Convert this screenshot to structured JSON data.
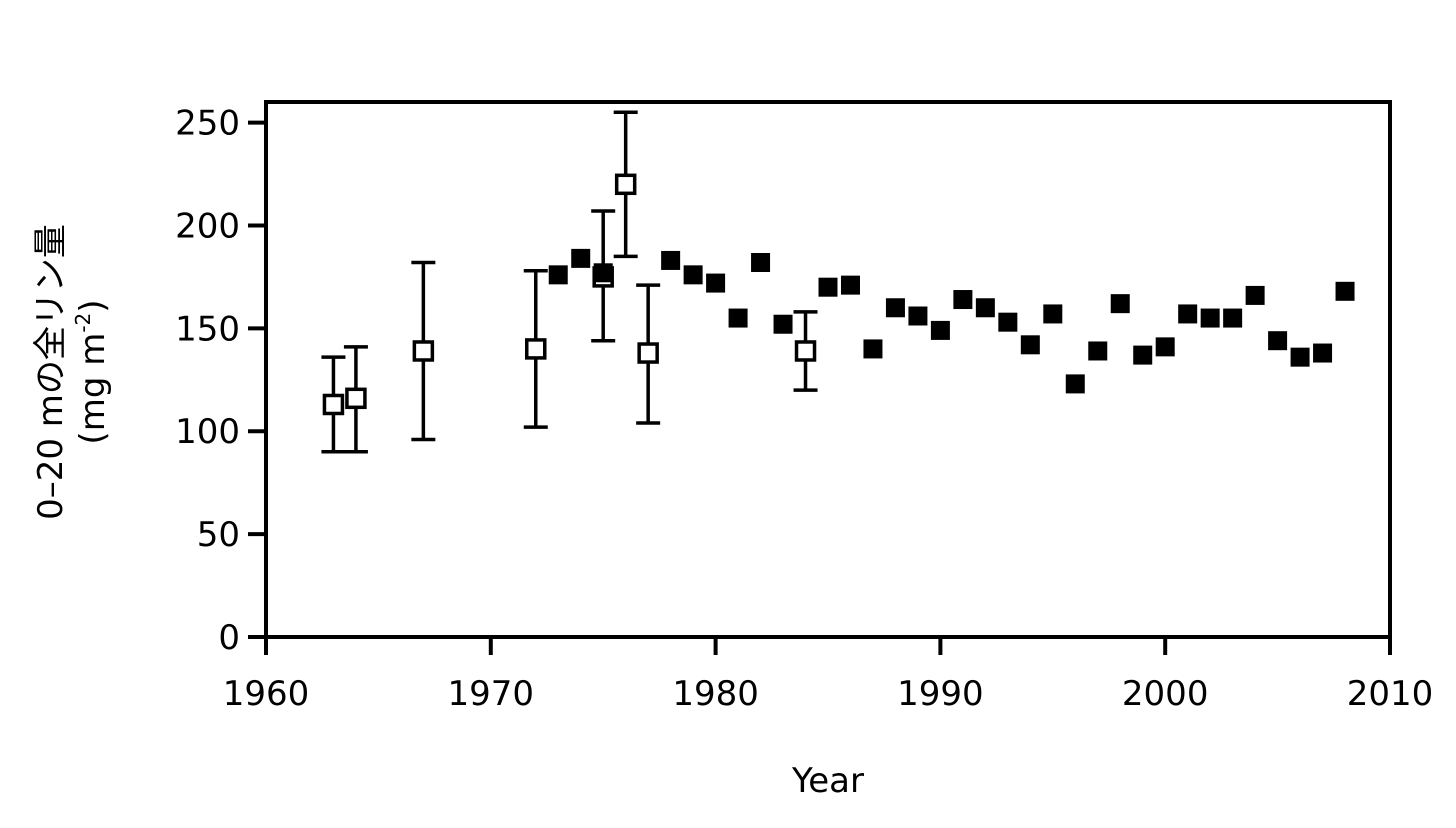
{
  "chart_data": {
    "type": "scatter",
    "title": "",
    "xlabel": "Year",
    "ylabel": {
      "line1": "0–20 mの全リン量",
      "line2_prefix": "(mg m",
      "line2_sup": "-2",
      "line2_suffix": ")"
    },
    "xlim": [
      1960,
      2010
    ],
    "ylim": [
      0,
      260
    ],
    "xticks": [
      1960,
      1970,
      1980,
      1990,
      2000,
      2010
    ],
    "yticks": [
      0,
      50,
      100,
      150,
      200,
      250
    ],
    "grid": false,
    "legend": "none",
    "series": [
      {
        "marker": "open-square",
        "points": [
          {
            "x": 1963,
            "y": 113,
            "err_low": 90,
            "err_high": 136
          },
          {
            "x": 1964,
            "y": 116,
            "err_low": 90,
            "err_high": 141
          },
          {
            "x": 1967,
            "y": 139,
            "err_low": 96,
            "err_high": 182
          },
          {
            "x": 1972,
            "y": 140,
            "err_low": 102,
            "err_high": 178
          },
          {
            "x": 1975,
            "y": 175,
            "err_low": 144,
            "err_high": 207
          },
          {
            "x": 1976,
            "y": 220,
            "err_low": 185,
            "err_high": 255
          },
          {
            "x": 1977,
            "y": 138,
            "err_low": 104,
            "err_high": 171
          },
          {
            "x": 1984,
            "y": 139,
            "err_low": 120,
            "err_high": 158
          }
        ]
      },
      {
        "marker": "filled-square",
        "points": [
          {
            "x": 1973,
            "y": 176
          },
          {
            "x": 1974,
            "y": 184
          },
          {
            "x": 1975,
            "y": 177
          },
          {
            "x": 1978,
            "y": 183
          },
          {
            "x": 1979,
            "y": 176
          },
          {
            "x": 1980,
            "y": 172
          },
          {
            "x": 1981,
            "y": 155
          },
          {
            "x": 1982,
            "y": 182
          },
          {
            "x": 1983,
            "y": 152
          },
          {
            "x": 1985,
            "y": 170
          },
          {
            "x": 1986,
            "y": 171
          },
          {
            "x": 1987,
            "y": 140
          },
          {
            "x": 1988,
            "y": 160
          },
          {
            "x": 1989,
            "y": 156
          },
          {
            "x": 1990,
            "y": 149
          },
          {
            "x": 1991,
            "y": 164
          },
          {
            "x": 1992,
            "y": 160
          },
          {
            "x": 1993,
            "y": 153
          },
          {
            "x": 1994,
            "y": 142
          },
          {
            "x": 1995,
            "y": 157
          },
          {
            "x": 1996,
            "y": 123
          },
          {
            "x": 1997,
            "y": 139
          },
          {
            "x": 1998,
            "y": 162
          },
          {
            "x": 1999,
            "y": 137
          },
          {
            "x": 2000,
            "y": 141
          },
          {
            "x": 2001,
            "y": 157
          },
          {
            "x": 2002,
            "y": 155
          },
          {
            "x": 2003,
            "y": 155
          },
          {
            "x": 2004,
            "y": 166
          },
          {
            "x": 2005,
            "y": 144
          },
          {
            "x": 2006,
            "y": 136
          },
          {
            "x": 2007,
            "y": 138
          },
          {
            "x": 2008,
            "y": 168
          }
        ]
      }
    ]
  }
}
